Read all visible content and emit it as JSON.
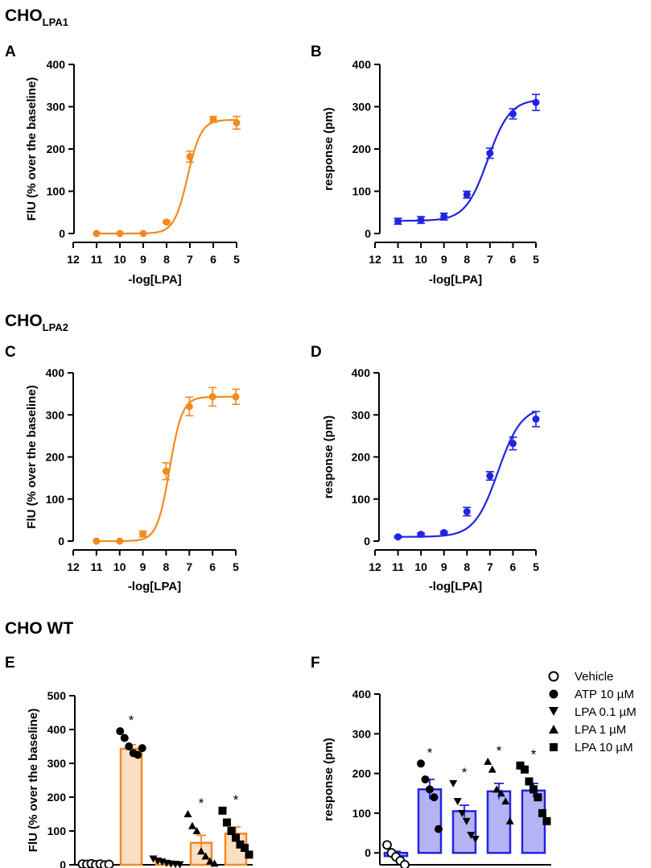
{
  "sections": {
    "lpa1": {
      "prefix": "CHO",
      "sub": "LPA1"
    },
    "lpa2": {
      "prefix": "CHO",
      "sub": "LPA2"
    },
    "wt": {
      "title": "CHO WT"
    }
  },
  "colors": {
    "orange": "#f28a1e",
    "blue": "#2323e0",
    "orange_fill": "#fbdfc3",
    "blue_fill": "#b4b4f5"
  },
  "legend": [
    {
      "marker": "circle-open",
      "label": "Vehicle"
    },
    {
      "marker": "circle",
      "label": "ATP 10 µM"
    },
    {
      "marker": "triangle-down",
      "label": "LPA 0.1 µM"
    },
    {
      "marker": "triangle-up",
      "label": "LPA 1 µM"
    },
    {
      "marker": "square",
      "label": "LPA 10 µM"
    }
  ],
  "chart_data": [
    {
      "panel": "A",
      "type": "line",
      "title": "",
      "xlabel": "-log[LPA]",
      "ylabel": "FlU (% over the baseline)",
      "xticks": [
        "12",
        "11",
        "10",
        "9",
        "8",
        "7",
        "6",
        "5"
      ],
      "xlim": [
        12,
        5
      ],
      "ylim": [
        0,
        400
      ],
      "yticks": [
        0,
        100,
        200,
        300,
        400
      ],
      "color": "orange",
      "x": [
        11,
        10,
        9,
        8,
        7,
        6,
        5
      ],
      "y": [
        0,
        0,
        0,
        27,
        182,
        270,
        262
      ],
      "err": [
        0,
        0,
        0,
        3,
        13,
        7,
        15
      ],
      "fit": {
        "bottom": 0,
        "top": 269,
        "logEC50": 7.1,
        "slope": 1.5
      }
    },
    {
      "panel": "B",
      "type": "line",
      "title": "",
      "xlabel": "-log[LPA]",
      "ylabel": "response (pm)",
      "xticks": [
        "12",
        "11",
        "10",
        "9",
        "8",
        "7",
        "6",
        "5"
      ],
      "xlim": [
        12,
        5
      ],
      "ylim": [
        0,
        400
      ],
      "yticks": [
        0,
        100,
        200,
        300,
        400
      ],
      "color": "blue",
      "x": [
        11,
        10,
        9,
        8,
        7,
        6,
        5
      ],
      "y": [
        29,
        32,
        40,
        92,
        190,
        283,
        310
      ],
      "err": [
        7,
        8,
        8,
        8,
        12,
        12,
        19
      ],
      "fit": {
        "bottom": 30,
        "top": 318,
        "logEC50": 7.1,
        "slope": 0.9
      }
    },
    {
      "panel": "C",
      "type": "line",
      "title": "",
      "xlabel": "-log[LPA]",
      "ylabel": "FlU (% over the baseline)",
      "xticks": [
        "12",
        "11",
        "10",
        "9",
        "8",
        "7",
        "6",
        "5"
      ],
      "xlim": [
        12,
        5
      ],
      "ylim": [
        0,
        400
      ],
      "yticks": [
        0,
        100,
        200,
        300,
        400
      ],
      "color": "orange",
      "x": [
        11,
        10,
        9,
        8,
        7,
        6,
        5
      ],
      "y": [
        0,
        0,
        17,
        166,
        320,
        343,
        343
      ],
      "err": [
        0,
        0,
        7,
        20,
        22,
        22,
        18
      ],
      "fit": {
        "bottom": 0,
        "top": 343,
        "logEC50": 7.85,
        "slope": 1.6
      }
    },
    {
      "panel": "D",
      "type": "line",
      "title": "",
      "xlabel": "-log[LPA]",
      "ylabel": "response (pm)",
      "xticks": [
        "12",
        "11",
        "10",
        "9",
        "8",
        "7",
        "6",
        "5"
      ],
      "xlim": [
        12,
        5
      ],
      "ylim": [
        0,
        400
      ],
      "yticks": [
        0,
        100,
        200,
        300,
        400
      ],
      "color": "blue",
      "x": [
        11,
        10,
        9,
        8,
        7,
        6,
        5
      ],
      "y": [
        10,
        16,
        20,
        70,
        155,
        232,
        290
      ],
      "err": [
        2,
        3,
        3,
        10,
        10,
        15,
        18
      ],
      "fit": {
        "bottom": 10,
        "top": 320,
        "logEC50": 6.65,
        "slope": 0.85
      }
    },
    {
      "panel": "E",
      "type": "bar",
      "title": "",
      "xlabel": "",
      "ylabel": "FlU (% over the baseline)",
      "ylim": [
        0,
        500
      ],
      "yticks": [
        0,
        100,
        200,
        300,
        400,
        500
      ],
      "color": "orange",
      "categories": [
        "Vehicle",
        "ATP 10 µM",
        "LPA 0.1 µM",
        "LPA 1 µM",
        "LPA 10 µM"
      ],
      "values": [
        0,
        343,
        8,
        65,
        92
      ],
      "err": [
        2,
        12,
        3,
        22,
        20
      ],
      "significant": [
        false,
        true,
        false,
        true,
        true
      ],
      "points": [
        [
          2,
          1,
          3,
          0,
          2,
          -1,
          1
        ],
        [
          395,
          375,
          350,
          330,
          325,
          345
        ],
        [
          18,
          12,
          9,
          5,
          3,
          2,
          1
        ],
        [
          150,
          115,
          100,
          40,
          25,
          10,
          4
        ],
        [
          160,
          125,
          100,
          80,
          60,
          50,
          30
        ]
      ]
    },
    {
      "panel": "F",
      "type": "bar",
      "title": "",
      "xlabel": "",
      "ylabel": "response (pm)",
      "ylim": [
        -30,
        400
      ],
      "yticks": [
        0,
        100,
        200,
        300,
        400
      ],
      "color": "blue",
      "categories": [
        "Vehicle",
        "ATP 10 µM",
        "LPA 0.1 µM",
        "LPA 1 µM",
        "LPA 10 µM"
      ],
      "values": [
        -8,
        160,
        105,
        155,
        157
      ],
      "err": [
        12,
        25,
        15,
        20,
        18
      ],
      "significant": [
        false,
        true,
        true,
        true,
        true
      ],
      "points": [
        [
          20,
          0,
          -10,
          -20,
          -30
        ],
        [
          225,
          185,
          160,
          140,
          60
        ],
        [
          175,
          130,
          100,
          80,
          45,
          35
        ],
        [
          230,
          210,
          160,
          150,
          130,
          80
        ],
        [
          220,
          210,
          180,
          160,
          140,
          100,
          80
        ]
      ]
    }
  ]
}
